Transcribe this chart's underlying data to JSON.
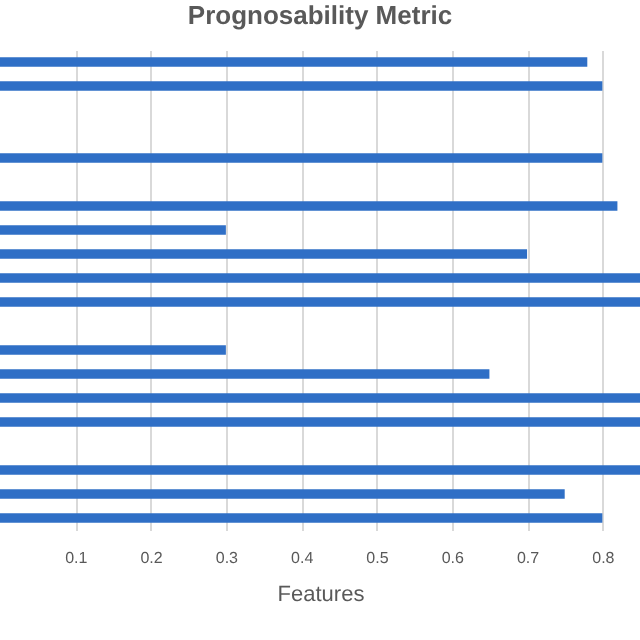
{
  "chart_data": {
    "type": "bar",
    "orientation": "horizontal",
    "title": "Prognosability Metric",
    "xlabel": "Features",
    "categories": [
      null,
      null,
      null,
      null,
      null,
      null,
      null,
      null,
      null,
      null,
      null,
      null,
      null,
      null,
      null,
      null,
      null,
      null,
      null,
      null
    ],
    "values": [
      0.78,
      0.8,
      null,
      null,
      0.8,
      null,
      0.82,
      0.3,
      0.7,
      0.85,
      0.85,
      null,
      0.3,
      0.65,
      0.85,
      0.85,
      null,
      0.85,
      0.75,
      0.8
    ],
    "color": "#2f6fc6",
    "xlim": [
      0,
      0.85
    ],
    "xticks": [
      0.1,
      0.2,
      0.3,
      0.4,
      0.5,
      0.6,
      0.7,
      0.8
    ],
    "grid": "x",
    "tick_labels": "x"
  }
}
